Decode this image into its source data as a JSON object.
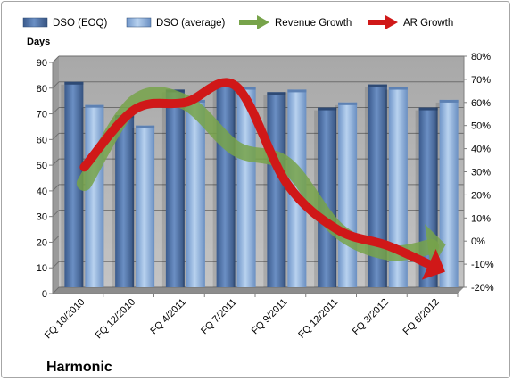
{
  "chart_data": {
    "type": "bar",
    "title": "Harmonic",
    "ylabel": "Days",
    "ylim": [
      0,
      90
    ],
    "y_ticks": [
      0,
      10,
      20,
      30,
      40,
      50,
      60,
      70,
      80,
      90
    ],
    "y2lim": [
      -20,
      80
    ],
    "y2_ticks": [
      "-20%",
      "-10%",
      "0%",
      "10%",
      "20%",
      "30%",
      "40%",
      "50%",
      "60%",
      "70%",
      "80%"
    ],
    "y2_tick_values": [
      -20,
      -10,
      0,
      10,
      20,
      30,
      40,
      50,
      60,
      70,
      80
    ],
    "categories": [
      "FQ 10/2010",
      "FQ 12/2010",
      "FQ 4/2011",
      "FQ 7/2011",
      "FQ 9/2011",
      "FQ 12/2011",
      "FQ 3/2012",
      "FQ 6/2012"
    ],
    "series": [
      {
        "name": "DSO (EOQ)",
        "kind": "bar",
        "color": "#4a6ea3",
        "values": [
          80,
          67,
          77,
          80,
          76,
          70,
          79,
          70
        ]
      },
      {
        "name": "DSO (average)",
        "kind": "bar",
        "color": "#8aaedb",
        "values": [
          71,
          63,
          73,
          78,
          77,
          72,
          78,
          73
        ]
      },
      {
        "name": "Revenue Growth",
        "kind": "line-arrow",
        "axis": "secondary",
        "unit": "%",
        "color": "#77a34a",
        "values": [
          25,
          60,
          60,
          40,
          33,
          5,
          -5,
          -2
        ]
      },
      {
        "name": "AR Growth",
        "kind": "line-arrow",
        "axis": "secondary",
        "unit": "%",
        "color": "#d01818",
        "values": [
          32,
          57,
          60,
          67,
          25,
          5,
          -2,
          -12
        ]
      }
    ],
    "grid": true,
    "legend_position": "top"
  }
}
